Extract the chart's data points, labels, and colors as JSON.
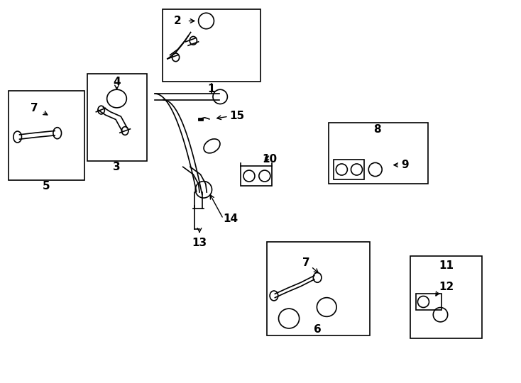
{
  "bg_color": "#ffffff",
  "line_color": "#000000",
  "lw": 1.2
}
